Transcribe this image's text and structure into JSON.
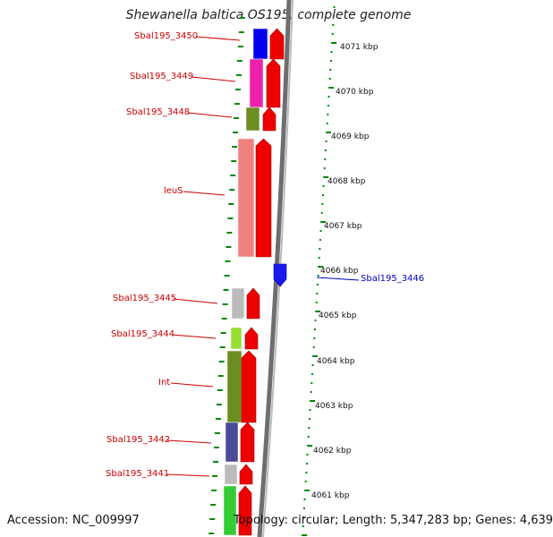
{
  "title": "Shewanella baltica OS195, complete genome",
  "accession_label": "Accession: NC_009997",
  "summary_label": "Topology: circular; Length: 5,347,283 bp; Genes: 4,639",
  "colors": {
    "forward_cds": "#ee0000",
    "reverse_cds": "#1a1aee",
    "backbone": "#808080",
    "tick": "#008800",
    "label_red": "#cc0000",
    "label_blue": "#0000cc"
  },
  "scale_ticks": [
    "4071 kbp",
    "4070 kbp",
    "4069 kbp",
    "4068 kbp",
    "4067 kbp",
    "4066 kbp",
    "4065 kbp",
    "4064 kbp",
    "4063 kbp",
    "4062 kbp",
    "4061 kbp"
  ],
  "gene_labels": [
    {
      "text": "Sbal195_3450",
      "color": "red"
    },
    {
      "text": "Sbal195_3449",
      "color": "red"
    },
    {
      "text": "Sbal195_3448",
      "color": "red"
    },
    {
      "text": "leuS",
      "color": "red"
    },
    {
      "text": "Sbal195_3446",
      "color": "blue"
    },
    {
      "text": "Sbal195_3445",
      "color": "red"
    },
    {
      "text": "Sbal195_3444",
      "color": "red"
    },
    {
      "text": "Int",
      "color": "red"
    },
    {
      "text": "Sbal195_3442",
      "color": "red"
    },
    {
      "text": "Sbal195_3441",
      "color": "red"
    }
  ],
  "category_colors": [
    "#0000ee",
    "#ee22aa",
    "#6b8e23",
    "#f08080",
    "#bbbbbb",
    "#99dd33",
    "#6b8e23",
    "#4a4a99",
    "#bbbbbb",
    "#33cc33"
  ]
}
